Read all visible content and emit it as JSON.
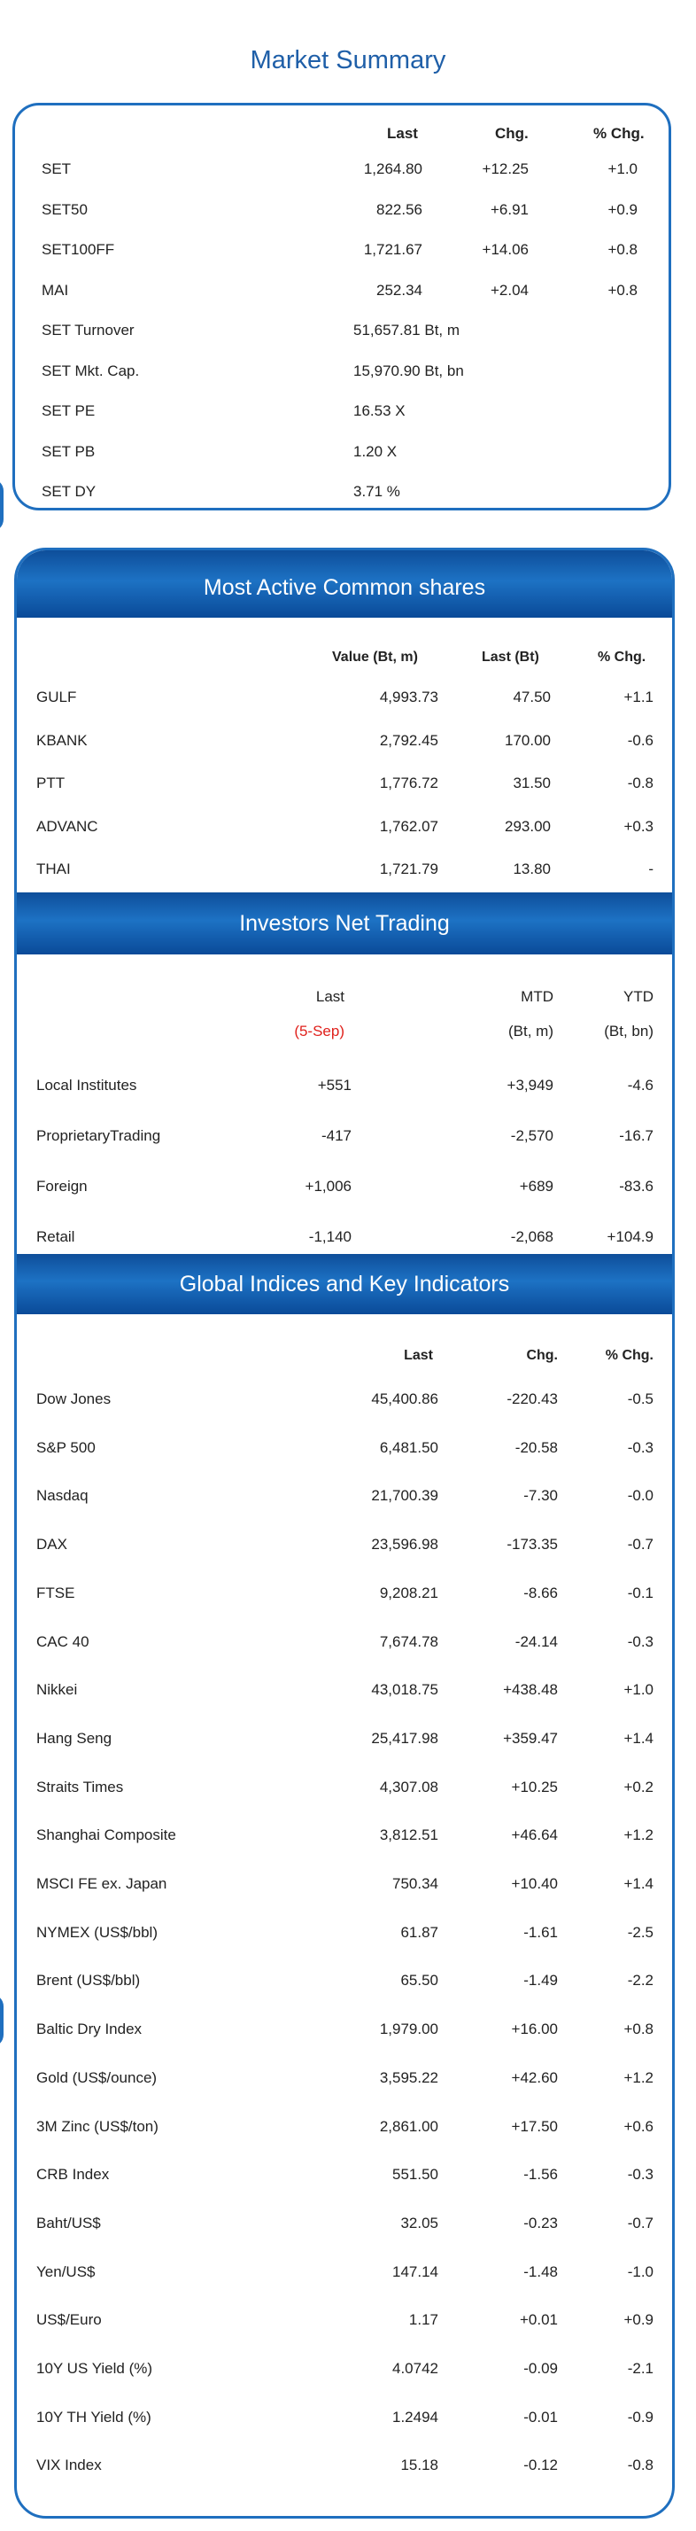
{
  "market_summary": {
    "title": "Market Summary",
    "headers": {
      "last": "Last",
      "chg": "Chg.",
      "pct": "% Chg."
    },
    "rows": [
      {
        "name": "SET",
        "last": "1,264.80",
        "chg": "+12.25",
        "pct": "+1.0"
      },
      {
        "name": "SET50",
        "last": "822.56",
        "chg": "+6.91",
        "pct": "+0.9"
      },
      {
        "name": "SET100FF",
        "last": "1,721.67",
        "chg": "+14.06",
        "pct": "+0.8"
      },
      {
        "name": "MAI",
        "last": "252.34",
        "chg": "+2.04",
        "pct": "+0.8"
      },
      {
        "name": "SET Turnover",
        "last": "51,657.81 Bt, m",
        "chg": "",
        "pct": ""
      },
      {
        "name": "SET Mkt. Cap.",
        "last": "15,970.90 Bt, bn",
        "chg": "",
        "pct": ""
      },
      {
        "name": "SET PE",
        "last": "16.53 X",
        "chg": "",
        "pct": ""
      },
      {
        "name": "SET PB",
        "last": "1.20 X",
        "chg": "",
        "pct": ""
      },
      {
        "name": "SET DY",
        "last": "3.71 %",
        "chg": "",
        "pct": ""
      }
    ]
  },
  "most_active": {
    "title": "Most Active Common shares",
    "headers": {
      "value": "Value (Bt, m)",
      "last": "Last (Bt)",
      "pct": "% Chg."
    },
    "rows": [
      {
        "name": "GULF",
        "value": "4,993.73",
        "last": "47.50",
        "pct": "+1.1"
      },
      {
        "name": "KBANK",
        "value": "2,792.45",
        "last": "170.00",
        "pct": "-0.6"
      },
      {
        "name": "PTT",
        "value": "1,776.72",
        "last": "31.50",
        "pct": "-0.8"
      },
      {
        "name": "ADVANC",
        "value": "1,762.07",
        "last": "293.00",
        "pct": "+0.3"
      },
      {
        "name": "THAI",
        "value": "1,721.79",
        "last": "13.80",
        "pct": "-"
      }
    ]
  },
  "investors": {
    "title": "Investors Net Trading",
    "headers": {
      "last": "Last",
      "mtd": "MTD",
      "ytd": "YTD"
    },
    "subheaders": {
      "last": "(5-Sep)",
      "mtd": "(Bt, m)",
      "ytd": "(Bt, bn)"
    },
    "rows": [
      {
        "name": "Local Institutes",
        "last": "+551",
        "mtd": "+3,949",
        "ytd": "-4.6"
      },
      {
        "name": "ProprietaryTrading",
        "last": "-417",
        "mtd": "-2,570",
        "ytd": "-16.7"
      },
      {
        "name": "Foreign",
        "last": "+1,006",
        "mtd": "+689",
        "ytd": "-83.6"
      },
      {
        "name": "Retail",
        "last": "-1,140",
        "mtd": "-2,068",
        "ytd": "+104.9"
      }
    ]
  },
  "global": {
    "title": "Global Indices and Key Indicators",
    "headers": {
      "last": "Last",
      "chg": "Chg.",
      "pct": "% Chg."
    },
    "rows": [
      {
        "name": "Dow Jones",
        "last": "45,400.86",
        "chg": "-220.43",
        "pct": "-0.5"
      },
      {
        "name": "S&P 500",
        "last": "6,481.50",
        "chg": "-20.58",
        "pct": "-0.3"
      },
      {
        "name": "Nasdaq",
        "last": "21,700.39",
        "chg": "-7.30",
        "pct": "-0.0"
      },
      {
        "name": "DAX",
        "last": "23,596.98",
        "chg": "-173.35",
        "pct": "-0.7"
      },
      {
        "name": "FTSE",
        "last": "9,208.21",
        "chg": "-8.66",
        "pct": "-0.1"
      },
      {
        "name": "CAC 40",
        "last": "7,674.78",
        "chg": "-24.14",
        "pct": "-0.3"
      },
      {
        "name": "Nikkei",
        "last": "43,018.75",
        "chg": "+438.48",
        "pct": "+1.0"
      },
      {
        "name": "Hang Seng",
        "last": "25,417.98",
        "chg": "+359.47",
        "pct": "+1.4"
      },
      {
        "name": "Straits Times",
        "last": "4,307.08",
        "chg": "+10.25",
        "pct": "+0.2"
      },
      {
        "name": "Shanghai Composite",
        "last": "3,812.51",
        "chg": "+46.64",
        "pct": "+1.2"
      },
      {
        "name": "MSCI FE ex. Japan",
        "last": "750.34",
        "chg": "+10.40",
        "pct": "+1.4"
      },
      {
        "name": "NYMEX (US$/bbl)",
        "last": "61.87",
        "chg": "-1.61",
        "pct": "-2.5"
      },
      {
        "name": "Brent (US$/bbl)",
        "last": "65.50",
        "chg": "-1.49",
        "pct": "-2.2"
      },
      {
        "name": "Baltic Dry Index",
        "last": "1,979.00",
        "chg": "+16.00",
        "pct": "+0.8"
      },
      {
        "name": "Gold (US$/ounce)",
        "last": "3,595.22",
        "chg": "+42.60",
        "pct": "+1.2"
      },
      {
        "name": "3M Zinc (US$/ton)",
        "last": "2,861.00",
        "chg": "+17.50",
        "pct": "+0.6"
      },
      {
        "name": "CRB Index",
        "last": "551.50",
        "chg": "-1.56",
        "pct": "-0.3"
      },
      {
        "name": "Baht/US$",
        "last": "32.05",
        "chg": "-0.23",
        "pct": "-0.7"
      },
      {
        "name": "Yen/US$",
        "last": "147.14",
        "chg": "-1.48",
        "pct": "-1.0"
      },
      {
        "name": "US$/Euro",
        "last": "1.17",
        "chg": "+0.01",
        "pct": "+0.9"
      },
      {
        "name": "10Y US Yield (%)",
        "last": "4.0742",
        "chg": "-0.09",
        "pct": "-2.1"
      },
      {
        "name": "10Y TH Yield (%)",
        "last": "1.2494",
        "chg": "-0.01",
        "pct": "-0.9"
      },
      {
        "name": "VIX Index",
        "last": "15.18",
        "chg": "-0.12",
        "pct": "-0.8"
      }
    ]
  },
  "colors": {
    "accent": "#1f6fbf",
    "title": "#1f5fa8",
    "band_dark": "#0e4e9a",
    "highlight": "#e0211c"
  }
}
